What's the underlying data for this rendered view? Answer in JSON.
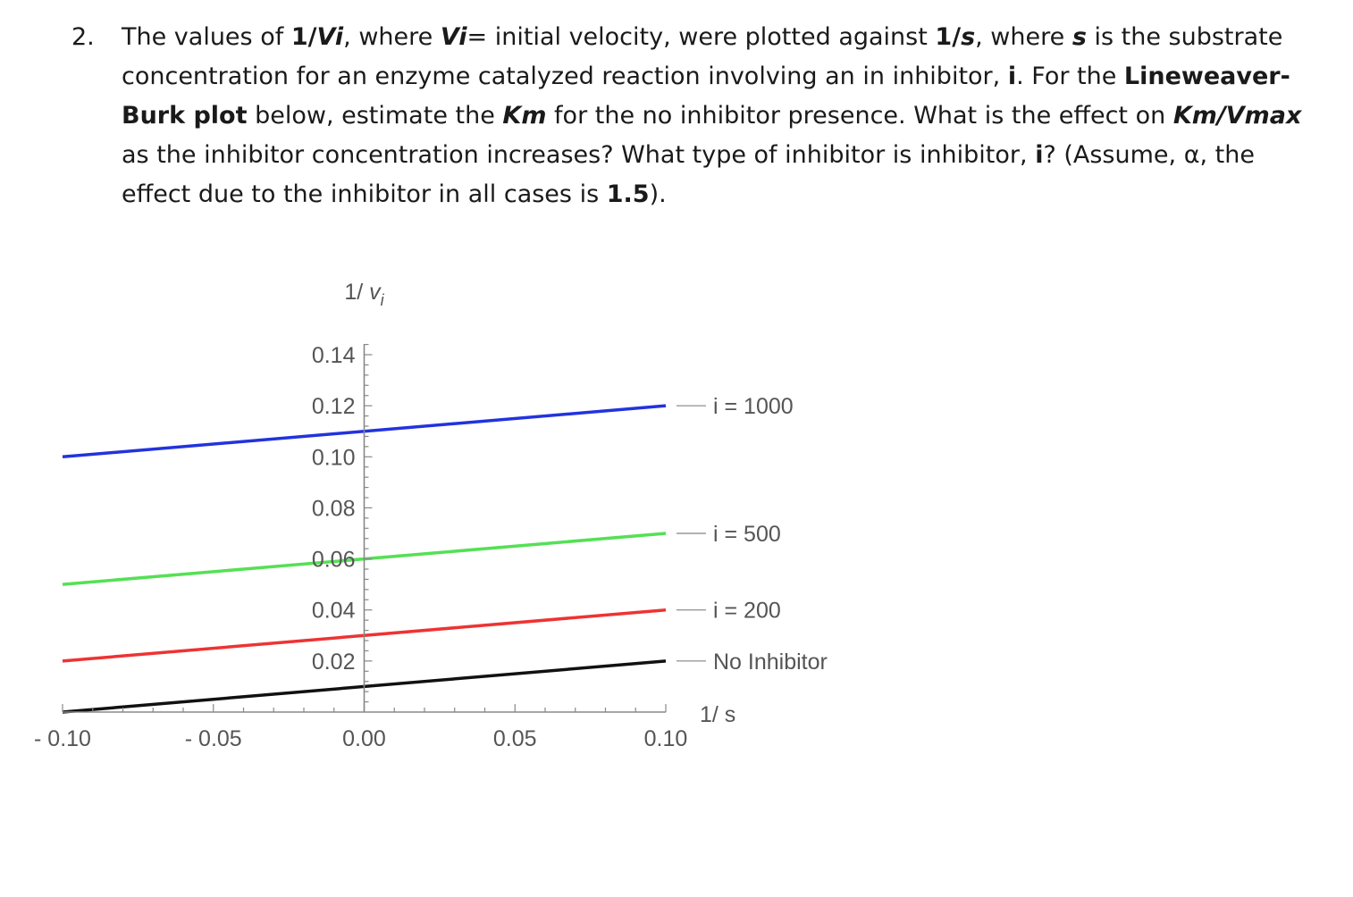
{
  "question": {
    "number": "2.",
    "t1": "The values of ",
    "b1": "1/",
    "bi1": "Vi",
    "t2": ", where ",
    "bi2": "Vi",
    "t3": "= initial velocity, were plotted against ",
    "b2": "1/",
    "bi3": "s",
    "t4": ", where ",
    "bi4": "s",
    "t5": " is the substrate concentration for an enzyme catalyzed reaction involving an in inhibitor, ",
    "b3": "i",
    "t6": ". For the ",
    "b4": "Lineweaver-Burk plot",
    "t7": " below, estimate the ",
    "bi5": "Km",
    "t8": " for the no inhibitor presence. What is the effect on ",
    "bi6": "Km/Vmax",
    "t9": " as the inhibitor concentration increases? What type of inhibitor is inhibitor, ",
    "b5": "i",
    "t10": "? (Assume, α, the effect due to the inhibitor in all cases is ",
    "b6": "1.5",
    "t11": ")."
  },
  "chart_data": {
    "type": "line",
    "title": "",
    "xlabel": "1/ s",
    "ylabel": "1/ v",
    "ylabel_sub": "i",
    "xlim": [
      -0.1,
      0.1
    ],
    "ylim": [
      0.0,
      0.14
    ],
    "x_ticks": [
      -0.1,
      -0.05,
      0.0,
      0.05,
      0.1
    ],
    "x_tick_labels": [
      "- 0.10",
      "- 0.05",
      "0.00",
      "0.05",
      "0.10"
    ],
    "y_ticks": [
      0.02,
      0.04,
      0.06,
      0.08,
      0.1,
      0.12,
      0.14
    ],
    "y_tick_labels": [
      "0.02",
      "0.04",
      "0.06",
      "0.08",
      "0.10",
      "0.12",
      "0.14"
    ],
    "grid": false,
    "legend_position": "right",
    "series": [
      {
        "name": "i = 1000",
        "color": "#2233dd",
        "x": [
          -0.1,
          0.1
        ],
        "y": [
          0.1,
          0.12
        ]
      },
      {
        "name": "i = 500",
        "color": "#55e055",
        "x": [
          -0.1,
          0.1
        ],
        "y": [
          0.05,
          0.07
        ]
      },
      {
        "name": "i = 200",
        "color": "#ee3333",
        "x": [
          -0.1,
          0.1
        ],
        "y": [
          0.02,
          0.04
        ]
      },
      {
        "name": "No Inhibitor",
        "color": "#111111",
        "x": [
          -0.1,
          0.1
        ],
        "y": [
          0.0,
          0.02
        ]
      }
    ]
  }
}
